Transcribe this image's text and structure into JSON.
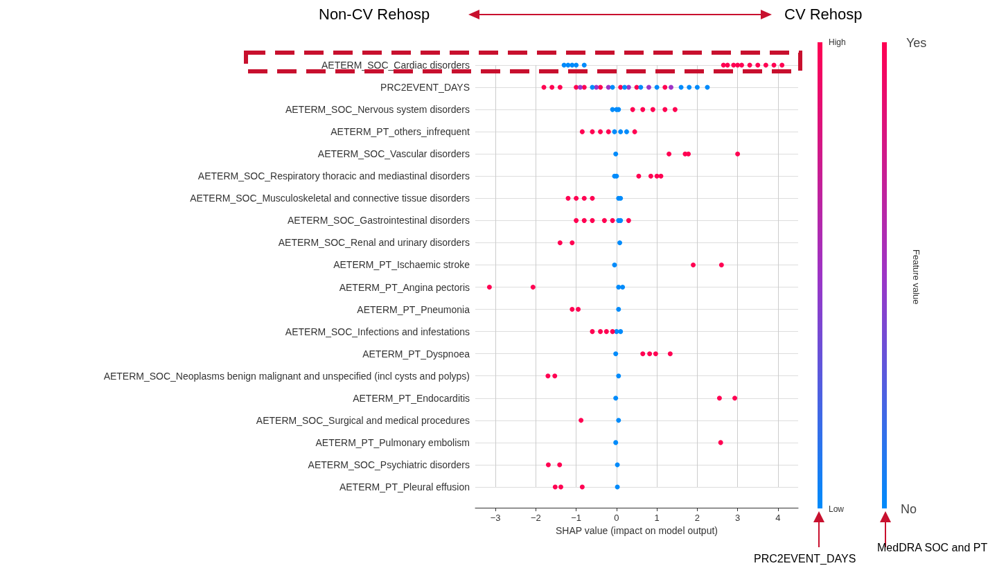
{
  "chart_data": {
    "type": "scatter",
    "orientation": "horizontal",
    "xlabel": "SHAP value (impact on model output)",
    "clabel": "Feature value",
    "xlim": [
      -3.5,
      4.5
    ],
    "xticks": [
      -3,
      -2,
      -1,
      0,
      1,
      2,
      3,
      4
    ],
    "grid": true,
    "marker": "circle",
    "categories": [
      "AETERM_SOC_Cardiac disorders",
      "PRC2EVENT_DAYS",
      "AETERM_SOC_Nervous system disorders",
      "AETERM_PT_others_infrequent",
      "AETERM_SOC_Vascular disorders",
      "AETERM_SOC_Respiratory thoracic and mediastinal disorders",
      "AETERM_SOC_Musculoskeletal and connective tissue disorders",
      "AETERM_SOC_Gastrointestinal disorders",
      "AETERM_SOC_Renal and urinary disorders",
      "AETERM_PT_Ischaemic stroke",
      "AETERM_PT_Angina pectoris",
      "AETERM_PT_Pneumonia",
      "AETERM_SOC_Infections and infestations",
      "AETERM_PT_Dyspnoea",
      "AETERM_SOC_Neoplasms benign malignant and unspecified (incl cysts and polyps)",
      "AETERM_PT_Endocarditis",
      "AETERM_SOC_Surgical and medical procedures",
      "AETERM_PT_Pulmonary embolism",
      "AETERM_SOC_Psychiatric disorders",
      "AETERM_PT_Pleural effusion"
    ],
    "series": [
      {
        "x": [
          "AETERM_SOC_Cardiac disorders",
          "AETERM_SOC_Cardiac disorders",
          "AETERM_SOC_Cardiac disorders",
          "AETERM_SOC_Cardiac disorders",
          "AETERM_SOC_Cardiac disorders",
          "AETERM_SOC_Cardiac disorders",
          "AETERM_SOC_Cardiac disorders",
          "AETERM_SOC_Cardiac disorders",
          "AETERM_SOC_Cardiac disorders",
          "AETERM_SOC_Cardiac disorders",
          "AETERM_SOC_Cardiac disorders",
          "AETERM_SOC_Cardiac disorders",
          "AETERM_SOC_Cardiac disorders",
          "AETERM_SOC_Cardiac disorders",
          "AETERM_SOC_Cardiac disorders"
        ],
        "values": [
          -1.3,
          -1.2,
          -1.1,
          -1.0,
          -0.8,
          2.65,
          2.75,
          2.9,
          3.0,
          3.1,
          3.3,
          3.5,
          3.7,
          3.9,
          4.1
        ],
        "colors": [
          "#008bfb",
          "#008bfb",
          "#008bfb",
          "#008bfb",
          "#008bfb",
          "#ff0052",
          "#ff0052",
          "#ff0052",
          "#ff0052",
          "#ff0052",
          "#ff0052",
          "#ff0052",
          "#ff0052",
          "#ff0052",
          "#ff0052"
        ]
      },
      {
        "x": [
          "PRC2EVENT_DAYS",
          "PRC2EVENT_DAYS",
          "PRC2EVENT_DAYS",
          "PRC2EVENT_DAYS",
          "PRC2EVENT_DAYS",
          "PRC2EVENT_DAYS",
          "PRC2EVENT_DAYS",
          "PRC2EVENT_DAYS",
          "PRC2EVENT_DAYS",
          "PRC2EVENT_DAYS",
          "PRC2EVENT_DAYS",
          "PRC2EVENT_DAYS",
          "PRC2EVENT_DAYS",
          "PRC2EVENT_DAYS",
          "PRC2EVENT_DAYS",
          "PRC2EVENT_DAYS",
          "PRC2EVENT_DAYS",
          "PRC2EVENT_DAYS",
          "PRC2EVENT_DAYS",
          "PRC2EVENT_DAYS",
          "PRC2EVENT_DAYS",
          "PRC2EVENT_DAYS",
          "PRC2EVENT_DAYS",
          "PRC2EVENT_DAYS"
        ],
        "values": [
          -1.8,
          -1.6,
          -1.4,
          -1.0,
          -0.8,
          -0.4,
          0.1,
          0.5,
          1.2,
          -0.9,
          -0.5,
          -0.2,
          0.3,
          0.8,
          1.35,
          -0.6,
          -0.1,
          0.2,
          0.6,
          1.0,
          1.6,
          1.8,
          2.0,
          2.25
        ],
        "colors": [
          "#ff0052",
          "#ff0052",
          "#ff0052",
          "#ff0052",
          "#ff0052",
          "#ff0052",
          "#ff0052",
          "#ff0052",
          "#ff0052",
          "#9d34c6",
          "#9d34c6",
          "#9d34c6",
          "#9d34c6",
          "#9d34c6",
          "#9d34c6",
          "#008bfb",
          "#008bfb",
          "#008bfb",
          "#008bfb",
          "#008bfb",
          "#008bfb",
          "#008bfb",
          "#008bfb",
          "#008bfb"
        ]
      },
      {
        "x": [
          "AETERM_SOC_Nervous system disorders",
          "AETERM_SOC_Nervous system disorders",
          "AETERM_SOC_Nervous system disorders",
          "AETERM_SOC_Nervous system disorders",
          "AETERM_SOC_Nervous system disorders",
          "AETERM_SOC_Nervous system disorders",
          "AETERM_SOC_Nervous system disorders",
          "AETERM_SOC_Nervous system disorders"
        ],
        "values": [
          -0.1,
          0,
          0.05,
          0.4,
          0.65,
          0.9,
          1.2,
          1.45
        ],
        "colors": [
          "#008bfb",
          "#008bfb",
          "#008bfb",
          "#ff0052",
          "#ff0052",
          "#ff0052",
          "#ff0052",
          "#ff0052"
        ]
      },
      {
        "x": [
          "AETERM_PT_others_infrequent",
          "AETERM_PT_others_infrequent",
          "AETERM_PT_others_infrequent",
          "AETERM_PT_others_infrequent",
          "AETERM_PT_others_infrequent",
          "AETERM_PT_others_infrequent",
          "AETERM_PT_others_infrequent",
          "AETERM_PT_others_infrequent"
        ],
        "values": [
          -0.85,
          -0.6,
          -0.4,
          -0.2,
          0.45,
          -0.05,
          0.1,
          0.25
        ],
        "colors": [
          "#ff0052",
          "#ff0052",
          "#ff0052",
          "#ff0052",
          "#ff0052",
          "#008bfb",
          "#008bfb",
          "#008bfb"
        ]
      },
      {
        "x": [
          "AETERM_SOC_Vascular disorders",
          "AETERM_SOC_Vascular disorders",
          "AETERM_SOC_Vascular disorders",
          "AETERM_SOC_Vascular disorders",
          "AETERM_SOC_Vascular disorders"
        ],
        "values": [
          -0.02,
          1.3,
          1.7,
          1.78,
          3.0
        ],
        "colors": [
          "#008bfb",
          "#ff0052",
          "#ff0052",
          "#ff0052",
          "#ff0052"
        ]
      },
      {
        "x": [
          "AETERM_SOC_Respiratory thoracic and mediastinal disorders",
          "AETERM_SOC_Respiratory thoracic and mediastinal disorders",
          "AETERM_SOC_Respiratory thoracic and mediastinal disorders",
          "AETERM_SOC_Respiratory thoracic and mediastinal disorders",
          "AETERM_SOC_Respiratory thoracic and mediastinal disorders",
          "AETERM_SOC_Respiratory thoracic and mediastinal disorders"
        ],
        "values": [
          -0.05,
          0,
          0.55,
          0.85,
          1.0,
          1.1
        ],
        "colors": [
          "#008bfb",
          "#008bfb",
          "#ff0052",
          "#ff0052",
          "#ff0052",
          "#ff0052"
        ]
      },
      {
        "x": [
          "AETERM_SOC_Musculoskeletal and connective tissue disorders",
          "AETERM_SOC_Musculoskeletal and connective tissue disorders",
          "AETERM_SOC_Musculoskeletal and connective tissue disorders",
          "AETERM_SOC_Musculoskeletal and connective tissue disorders",
          "AETERM_SOC_Musculoskeletal and connective tissue disorders",
          "AETERM_SOC_Musculoskeletal and connective tissue disorders"
        ],
        "values": [
          0.05,
          0.1,
          -1.2,
          -1.0,
          -0.8,
          -0.6
        ],
        "colors": [
          "#008bfb",
          "#008bfb",
          "#ff0052",
          "#ff0052",
          "#ff0052",
          "#ff0052"
        ]
      },
      {
        "x": [
          "AETERM_SOC_Gastrointestinal disorders",
          "AETERM_SOC_Gastrointestinal disorders",
          "AETERM_SOC_Gastrointestinal disorders",
          "AETERM_SOC_Gastrointestinal disorders",
          "AETERM_SOC_Gastrointestinal disorders",
          "AETERM_SOC_Gastrointestinal disorders",
          "AETERM_SOC_Gastrointestinal disorders",
          "AETERM_SOC_Gastrointestinal disorders"
        ],
        "values": [
          0.05,
          0.1,
          -1.0,
          -0.8,
          -0.6,
          -0.3,
          -0.1,
          0.3
        ],
        "colors": [
          "#008bfb",
          "#008bfb",
          "#ff0052",
          "#ff0052",
          "#ff0052",
          "#ff0052",
          "#ff0052",
          "#ff0052"
        ]
      },
      {
        "x": [
          "AETERM_SOC_Renal and urinary disorders",
          "AETERM_SOC_Renal and urinary disorders",
          "AETERM_SOC_Renal and urinary disorders"
        ],
        "values": [
          0.08,
          -1.4,
          -1.1
        ],
        "colors": [
          "#008bfb",
          "#ff0052",
          "#ff0052"
        ]
      },
      {
        "x": [
          "AETERM_PT_Ischaemic stroke",
          "AETERM_PT_Ischaemic stroke",
          "AETERM_PT_Ischaemic stroke"
        ],
        "values": [
          -0.05,
          1.9,
          2.6
        ],
        "colors": [
          "#008bfb",
          "#ff0052",
          "#ff0052"
        ]
      },
      {
        "x": [
          "AETERM_PT_Angina pectoris",
          "AETERM_PT_Angina pectoris",
          "AETERM_PT_Angina pectoris",
          "AETERM_PT_Angina pectoris"
        ],
        "values": [
          0.05,
          0.15,
          -3.15,
          -2.07
        ],
        "colors": [
          "#008bfb",
          "#008bfb",
          "#ff0052",
          "#ff0052"
        ]
      },
      {
        "x": [
          "AETERM_PT_Pneumonia",
          "AETERM_PT_Pneumonia",
          "AETERM_PT_Pneumonia"
        ],
        "values": [
          0.05,
          -1.1,
          -0.95
        ],
        "colors": [
          "#008bfb",
          "#ff0052",
          "#ff0052"
        ]
      },
      {
        "x": [
          "AETERM_SOC_Infections and infestations",
          "AETERM_SOC_Infections and infestations",
          "AETERM_SOC_Infections and infestations",
          "AETERM_SOC_Infections and infestations",
          "AETERM_SOC_Infections and infestations",
          "AETERM_SOC_Infections and infestations"
        ],
        "values": [
          0,
          0.1,
          -0.6,
          -0.4,
          -0.25,
          -0.1
        ],
        "colors": [
          "#008bfb",
          "#008bfb",
          "#ff0052",
          "#ff0052",
          "#ff0052",
          "#ff0052"
        ]
      },
      {
        "x": [
          "AETERM_PT_Dyspnoea",
          "AETERM_PT_Dyspnoea",
          "AETERM_PT_Dyspnoea",
          "AETERM_PT_Dyspnoea",
          "AETERM_PT_Dyspnoea"
        ],
        "values": [
          -0.02,
          0.65,
          0.82,
          0.97,
          1.33
        ],
        "colors": [
          "#008bfb",
          "#ff0052",
          "#ff0052",
          "#ff0052",
          "#ff0052"
        ]
      },
      {
        "x": [
          "AETERM_SOC_Neoplasms benign malignant and unspecified (incl cysts and polyps)",
          "AETERM_SOC_Neoplasms benign malignant and unspecified (incl cysts and polyps)",
          "AETERM_SOC_Neoplasms benign malignant and unspecified (incl cysts and polyps)"
        ],
        "values": [
          0.05,
          -1.7,
          -1.53
        ],
        "colors": [
          "#008bfb",
          "#ff0052",
          "#ff0052"
        ]
      },
      {
        "x": [
          "AETERM_PT_Endocarditis",
          "AETERM_PT_Endocarditis",
          "AETERM_PT_Endocarditis"
        ],
        "values": [
          -0.02,
          2.55,
          2.93
        ],
        "colors": [
          "#008bfb",
          "#ff0052",
          "#ff0052"
        ]
      },
      {
        "x": [
          "AETERM_SOC_Surgical and medical procedures",
          "AETERM_SOC_Surgical and medical procedures"
        ],
        "values": [
          0.05,
          -0.88
        ],
        "colors": [
          "#008bfb",
          "#ff0052"
        ]
      },
      {
        "x": [
          "AETERM_PT_Pulmonary embolism",
          "AETERM_PT_Pulmonary embolism"
        ],
        "values": [
          -0.02,
          2.58
        ],
        "colors": [
          "#008bfb",
          "#ff0052"
        ]
      },
      {
        "x": [
          "AETERM_SOC_Psychiatric disorders",
          "AETERM_SOC_Psychiatric disorders",
          "AETERM_SOC_Psychiatric disorders"
        ],
        "values": [
          0.02,
          -1.69,
          -1.41
        ],
        "colors": [
          "#008bfb",
          "#ff0052",
          "#ff0052"
        ]
      },
      {
        "x": [
          "AETERM_PT_Pleural effusion",
          "AETERM_PT_Pleural effusion",
          "AETERM_PT_Pleural effusion",
          "AETERM_PT_Pleural effusion"
        ],
        "values": [
          0.02,
          -1.52,
          -1.38,
          -0.85
        ],
        "colors": [
          "#008bfb",
          "#ff0052",
          "#ff0052",
          "#ff0052"
        ]
      }
    ],
    "annotations": [
      "Non-CV Rehosp",
      "CV Rehosp",
      "PRC2EVENT_DAYS",
      "MedDRA SOC and PT",
      "High",
      "Low",
      "Yes",
      "No"
    ]
  }
}
